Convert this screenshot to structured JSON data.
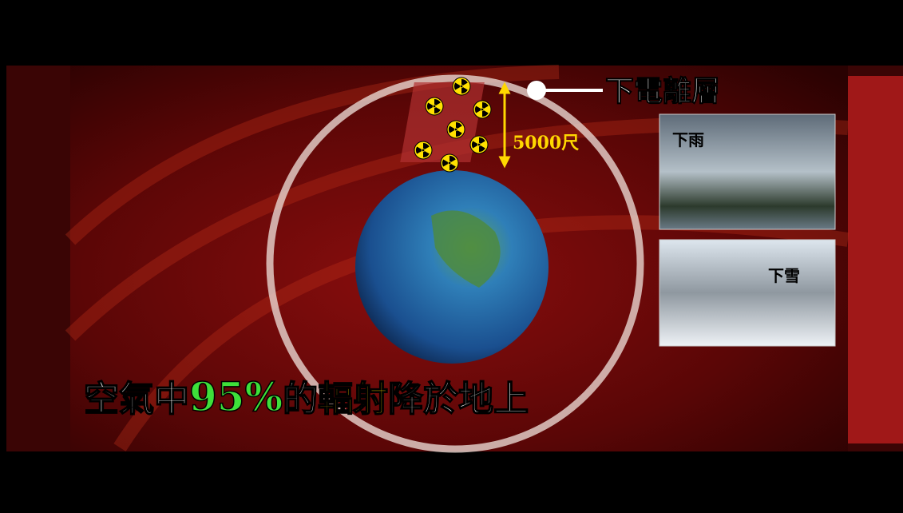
{
  "label": {
    "ionosphere": "下電離層",
    "height": "5000尺"
  },
  "photos": [
    {
      "label": "下雨"
    },
    {
      "label": "下雪"
    }
  ],
  "caption": {
    "part1": "空氣中",
    "percent": "95%",
    "part2": "的",
    "radiation": "輻射",
    "part3": "降於地上"
  }
}
